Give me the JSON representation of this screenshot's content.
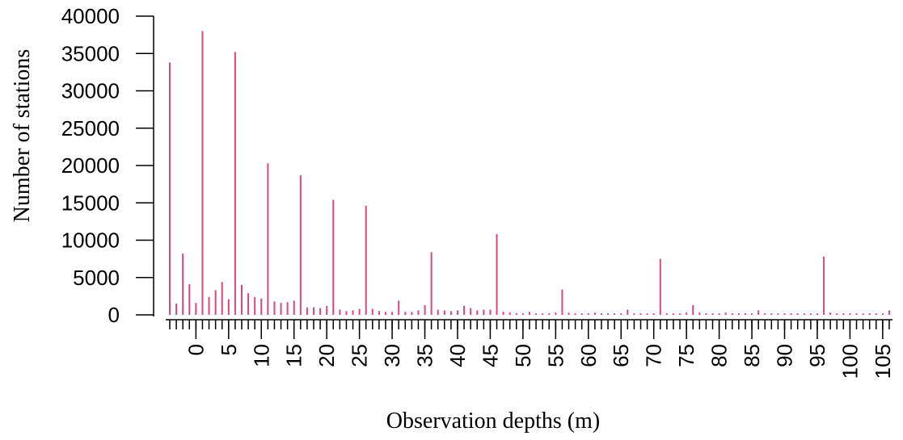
{
  "chart_data": {
    "type": "bar",
    "x_label": "Observation depths (m)",
    "y_label": "Number of stations",
    "color": "#d9487c",
    "x": [
      -4,
      -3,
      -2,
      -1,
      0,
      1,
      2,
      3,
      4,
      5,
      6,
      7,
      8,
      9,
      10,
      11,
      12,
      13,
      14,
      15,
      16,
      17,
      18,
      19,
      20,
      21,
      22,
      23,
      24,
      25,
      26,
      27,
      28,
      29,
      30,
      31,
      32,
      33,
      34,
      35,
      36,
      37,
      38,
      39,
      40,
      41,
      42,
      43,
      44,
      45,
      46,
      47,
      48,
      49,
      50,
      51,
      52,
      53,
      54,
      55,
      56,
      57,
      58,
      59,
      60,
      61,
      62,
      63,
      64,
      65,
      66,
      67,
      68,
      69,
      70,
      71,
      72,
      73,
      74,
      75,
      76,
      77,
      78,
      79,
      80,
      81,
      82,
      83,
      84,
      85,
      86,
      87,
      88,
      89,
      90,
      91,
      92,
      93,
      94,
      95,
      96,
      97,
      98,
      99,
      100,
      101,
      102,
      103,
      104,
      105,
      106
    ],
    "values": [
      33800,
      1500,
      8200,
      4100,
      1600,
      38000,
      2400,
      3300,
      4400,
      2100,
      35200,
      4000,
      2900,
      2400,
      2200,
      20300,
      1800,
      1600,
      1700,
      1900,
      18700,
      1000,
      1000,
      900,
      1200,
      15400,
      700,
      500,
      600,
      800,
      14600,
      800,
      500,
      400,
      400,
      1900,
      400,
      400,
      600,
      1300,
      8400,
      700,
      600,
      500,
      600,
      1200,
      900,
      600,
      700,
      700,
      10800,
      400,
      300,
      200,
      200,
      400,
      200,
      200,
      200,
      300,
      3400,
      300,
      200,
      200,
      200,
      300,
      200,
      200,
      200,
      200,
      700,
      200,
      200,
      200,
      200,
      7500,
      200,
      200,
      200,
      300,
      1300,
      300,
      200,
      200,
      200,
      300,
      200,
      200,
      200,
      200,
      600,
      200,
      200,
      200,
      200,
      200,
      200,
      200,
      200,
      200,
      7800,
      300,
      200,
      200,
      200,
      200,
      200,
      200,
      200,
      200,
      600
    ],
    "xlim": [
      -4,
      106.5
    ],
    "xticks": [
      0,
      5,
      10,
      15,
      20,
      25,
      30,
      35,
      40,
      45,
      50,
      55,
      60,
      65,
      70,
      75,
      80,
      85,
      90,
      95,
      100,
      105
    ],
    "ylim": [
      0,
      40000
    ],
    "yticks": [
      0,
      5000,
      10000,
      15000,
      20000,
      25000,
      30000,
      35000,
      40000
    ]
  }
}
